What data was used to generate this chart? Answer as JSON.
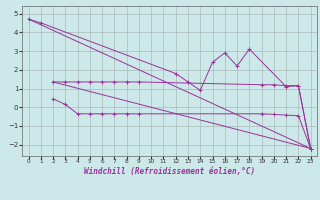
{
  "bg_color": "#cce8e8",
  "grid_color": "#aabbbb",
  "line_color": "#993399",
  "xlabel": "Windchill (Refroidissement éolien,°C)",
  "ylim": [
    -2.6,
    5.4
  ],
  "xlim": [
    -0.5,
    23.5
  ],
  "ytick_vals": [
    -2,
    -1,
    0,
    1,
    2,
    3,
    4,
    5
  ],
  "xtick_vals": [
    0,
    1,
    2,
    3,
    4,
    5,
    6,
    7,
    8,
    9,
    10,
    11,
    12,
    13,
    14,
    15,
    16,
    17,
    18,
    19,
    20,
    21,
    22,
    23
  ],
  "line1_x": [
    0,
    1,
    12,
    13,
    14,
    15,
    16,
    17,
    18,
    21,
    22,
    23
  ],
  "line1_y": [
    4.7,
    4.5,
    1.8,
    1.35,
    0.9,
    2.4,
    2.9,
    2.2,
    3.1,
    1.1,
    1.15,
    -2.2
  ],
  "line2_x": [
    2,
    3,
    4,
    5,
    6,
    7,
    8,
    9,
    19,
    20,
    21,
    22,
    23
  ],
  "line2_y": [
    1.35,
    1.35,
    1.35,
    1.35,
    1.35,
    1.35,
    1.35,
    1.35,
    1.2,
    1.2,
    1.15,
    1.15,
    -2.2
  ],
  "line3_x": [
    2,
    3,
    4,
    5,
    6,
    7,
    8,
    9,
    19,
    20,
    21,
    22,
    23
  ],
  "line3_y": [
    0.45,
    0.15,
    -0.35,
    -0.35,
    -0.35,
    -0.35,
    -0.35,
    -0.35,
    -0.35,
    -0.38,
    -0.42,
    -0.45,
    -2.2
  ],
  "line4_x": [
    0,
    23
  ],
  "line4_y": [
    4.7,
    -2.2
  ],
  "line5_x": [
    2,
    23
  ],
  "line5_y": [
    1.35,
    -2.2
  ]
}
